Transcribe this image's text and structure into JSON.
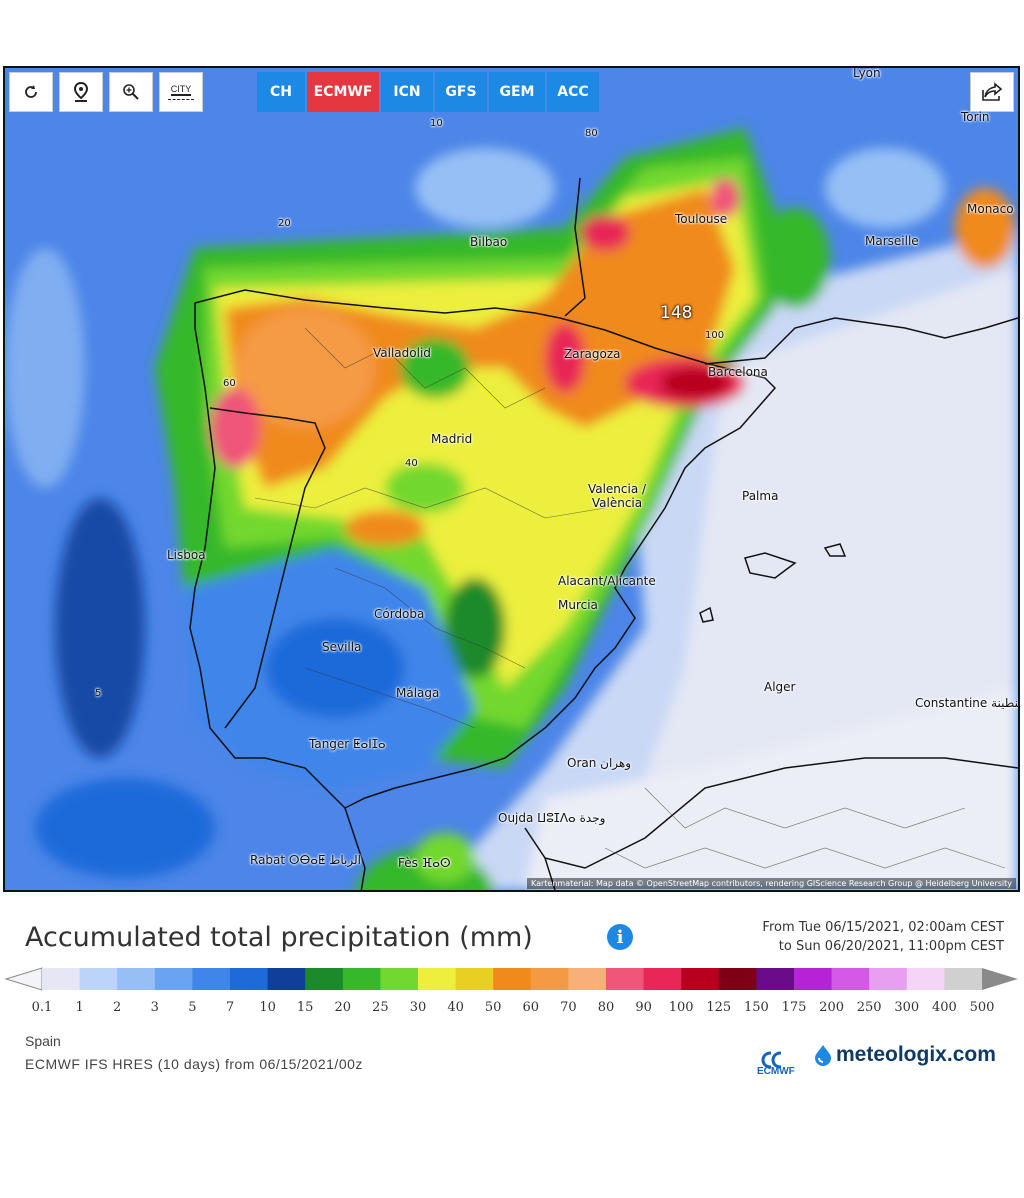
{
  "toolbar": {
    "buttons": [
      {
        "name": "refresh",
        "icon": "refresh-icon"
      },
      {
        "name": "location",
        "icon": "map-pin-icon"
      },
      {
        "name": "zoom",
        "icon": "zoom-icon"
      },
      {
        "name": "city",
        "icon": "city-icon",
        "label": "CITY"
      }
    ],
    "models": [
      {
        "label": "CH",
        "active": false
      },
      {
        "label": "ECMWF",
        "active": true
      },
      {
        "label": "ICN",
        "active": false
      },
      {
        "label": "GFS",
        "active": false
      },
      {
        "label": "GEM",
        "active": false
      },
      {
        "label": "ACC",
        "active": false
      }
    ],
    "share_icon": "share-icon"
  },
  "map": {
    "cities": [
      "Lyon",
      "Torin",
      "Monaco",
      "Toulouse",
      "Marseille",
      "Bilbao",
      "Valladolid",
      "Zaragoza",
      "Barcelona",
      "Madrid",
      "Valencia / València",
      "Palma",
      "Lisboa",
      "Alacant/Alicante",
      "Murcia",
      "Córdoba",
      "Sevilla",
      "Málaga",
      "Alger",
      "Constantine قسنطينة",
      "Tanger ⵟⴰⵏⵊⴰ",
      "Oran وهران",
      "Oujda ⵡⵓⵊⴷⴰ وجدة",
      "Rabat ⵔⴱⴰⵟ الرباط",
      "Fès ⴼⴰⵙ"
    ],
    "max_value_label": "148",
    "contour_labels": [
      "5",
      "10",
      "20",
      "40",
      "60",
      "80",
      "100"
    ],
    "attribution": "Kartenmaterial: Map data © OpenStreetMap contributors, rendering GIScience Research Group @ Heidelberg University"
  },
  "legend": {
    "title": "Accumulated total precipitation (mm)",
    "info_icon": "info-icon",
    "period_from": "From Tue 06/15/2021, 02:00am CEST",
    "period_to": "to Sun 06/20/2021, 11:00pm CEST",
    "ticks": [
      "0.1",
      "1",
      "2",
      "3",
      "5",
      "7",
      "10",
      "15",
      "20",
      "25",
      "30",
      "40",
      "50",
      "60",
      "70",
      "80",
      "90",
      "100",
      "125",
      "150",
      "175",
      "200",
      "250",
      "300",
      "400",
      "500"
    ],
    "colors": [
      "#e6e6f5",
      "#bcd4f7",
      "#96bff5",
      "#6aa3f0",
      "#3f85ea",
      "#1f6ad9",
      "#0f3f9a",
      "#1c8a2a",
      "#36b82c",
      "#72d82e",
      "#ecef3c",
      "#e8cf22",
      "#f08a1a",
      "#f59a44",
      "#f7b07a",
      "#f0557a",
      "#e82657",
      "#b8001e",
      "#7f0016",
      "#6a0c8a",
      "#b424d6",
      "#d45ae6",
      "#e7a0f0",
      "#f4d4f7",
      "#d0d0d0"
    ]
  },
  "footer": {
    "region": "Spain",
    "model_run": "ECMWF IFS HRES (10 days) from 06/15/2021/00z",
    "ecmwf_logo_text": "ECMWF",
    "brand": "meteologix.com"
  }
}
